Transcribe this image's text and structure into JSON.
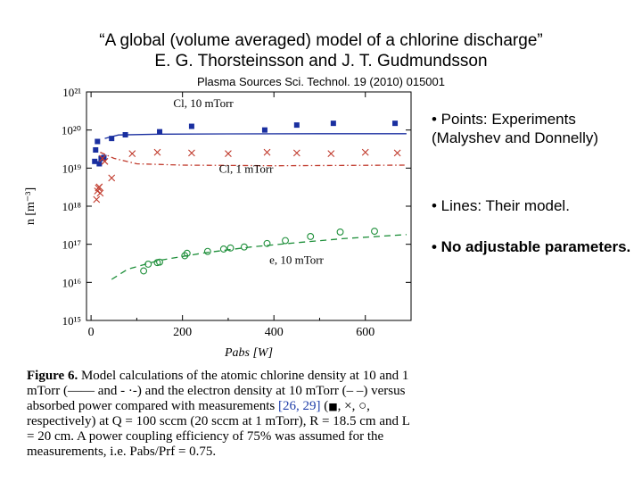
{
  "header": {
    "title": "“A global (volume averaged) model of a chlorine discharge”",
    "authors": "E. G. Thorsteinsson and J. T. Gudmundsson",
    "citation": "Plasma Sources Sci. Technol. 19 (2010) 015001"
  },
  "bullets": [
    "• Points: Experiments (Malyshev and Donnelly)",
    "• Lines: Their model.",
    "• No adjustable parameters."
  ],
  "caption": {
    "label": "Figure 6.",
    "text1": "Model calculations of the atomic chlorine density at 10 and 1 mTorr (—— and - ·-) and the electron density at 10 mTorr (– –) versus absorbed power compared with measurements",
    "refs": "[26, 29]",
    "text2": "(",
    "text3": ", ×, ○, respectively) at Q = 100 sccm (20 sccm at 1 mTorr), R = 18.5 cm and L = 20 cm. A power coupling efficiency of 75% was assumed for the measurements, i.e. Pabs/Prf = 0.75."
  },
  "chart_data": {
    "type": "scatter",
    "xlabel": "Pabs [W]",
    "ylabel": "n [m⁻³]",
    "xlim": [
      -10,
      700
    ],
    "ylog": true,
    "ylim": [
      1000000000000000.0,
      1e+21
    ],
    "x_ticks": [
      0,
      200,
      400,
      600
    ],
    "y_ticks": [
      {
        "value": 1000000000000000.0,
        "label": "10¹⁵"
      },
      {
        "value": 1e+16,
        "label": "10¹⁶"
      },
      {
        "value": 1e+17,
        "label": "10¹⁷"
      },
      {
        "value": 1e+18,
        "label": "10¹⁸"
      },
      {
        "value": 1e+19,
        "label": "10¹⁹"
      },
      {
        "value": 1e+20,
        "label": "10²⁰"
      },
      {
        "value": 1e+21,
        "label": "10²¹"
      }
    ],
    "annotations": [
      {
        "text": "Cl, 10 mTorr",
        "x": 180,
        "y": 4e+20
      },
      {
        "text": "Cl, 1 mTorr",
        "x": 280,
        "y": 7.5e+18
      },
      {
        "text": "e, 10 mTorr",
        "x": 390,
        "y": 3.1e+16
      }
    ],
    "series": [
      {
        "marker": "square",
        "color": "#1a2fa0",
        "x": [
          8,
          10,
          14,
          18,
          22,
          28,
          45,
          75,
          150,
          220,
          380,
          450,
          530,
          665
        ],
        "y": [
          1.5e+19,
          3e+19,
          5e+19,
          1.3e+19,
          1.8e+19,
          1.9e+19,
          6e+19,
          7.5e+19,
          9e+19,
          1.25e+20,
          1e+20,
          1.35e+20,
          1.5e+20,
          1.5e+20
        ]
      },
      {
        "marker": "cross",
        "color": "#c0392b",
        "x": [
          12,
          14,
          16,
          18,
          20,
          25,
          30,
          45,
          90,
          145,
          220,
          300,
          385,
          450,
          525,
          600,
          670
        ],
        "y": [
          1.5e+18,
          2.5e+18,
          3e+18,
          3.2e+18,
          2.2e+18,
          1.8e+19,
          1.5e+19,
          5.5e+18,
          2.4e+19,
          2.6e+19,
          2.5e+19,
          2.4e+19,
          2.6e+19,
          2.5e+19,
          2.4e+19,
          2.6e+19,
          2.5e+19
        ]
      },
      {
        "marker": "circle",
        "color": "#1e8f3a",
        "x": [
          115,
          125,
          145,
          150,
          205,
          210,
          255,
          290,
          305,
          335,
          385,
          425,
          480,
          545,
          620
        ],
        "y": [
          2e+16,
          3e+16,
          3.3e+16,
          3.4e+16,
          5e+16,
          5.8e+16,
          6.5e+16,
          7.5e+16,
          8e+16,
          8.5e+16,
          1.05e+17,
          1.25e+17,
          1.6e+17,
          2.1e+17,
          2.2e+17
        ]
      }
    ],
    "model_lines": [
      {
        "style": "solid",
        "color": "#1a2fa0",
        "x": [
          30,
          60,
          150,
          300,
          500,
          690
        ],
        "y": [
          6e+19,
          7.4e+19,
          7.8e+19,
          7.9e+19,
          8e+19,
          8e+19
        ]
      },
      {
        "style": "dashdot",
        "color": "#c0392b",
        "x": [
          20,
          50,
          100,
          200,
          400,
          690
        ],
        "y": [
          2.6e+19,
          1.8e+19,
          1.3e+19,
          1.2e+19,
          1.15e+19,
          1.2e+19
        ]
      },
      {
        "style": "dashed",
        "color": "#1e8f3a",
        "x": [
          45,
          80,
          150,
          250,
          350,
          450,
          550,
          690
        ],
        "y": [
          1.2e+16,
          2.2e+16,
          3.8e+16,
          6e+16,
          8.5e+16,
          1.1e+17,
          1.4e+17,
          1.8e+17
        ]
      }
    ]
  }
}
